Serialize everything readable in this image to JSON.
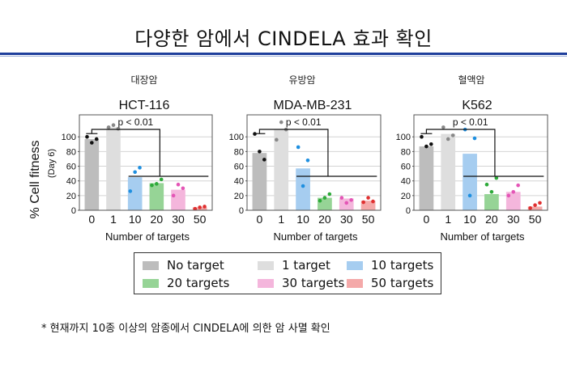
{
  "page": {
    "title": "다양한 암에서 CINDELA 효과 확인",
    "footnote": "* 현재까지 10종 이상의 암종에서 CINDELA에 의한 암 사멸 확인",
    "y_axis_label": "% Cell fitness",
    "y_axis_sublabel": "(Day 6)"
  },
  "legend": [
    {
      "label": "No target",
      "color": "#bdbdbd"
    },
    {
      "label": "1 target",
      "color": "#dedede"
    },
    {
      "label": "10 targets",
      "color": "#a6cdf0"
    },
    {
      "label": "20 targets",
      "color": "#96d496"
    },
    {
      "label": "30 targets",
      "color": "#f4b6dc"
    },
    {
      "label": "50 targets",
      "color": "#f4a9a9"
    }
  ],
  "chart_data": [
    {
      "type": "bar",
      "category_label": "대장암",
      "title": "HCT-116",
      "xlabel": "Number of targets",
      "ylabel": "% Cell fitness (Day 6)",
      "categories": [
        "0",
        "1",
        "10",
        "20",
        "30",
        "50"
      ],
      "values": [
        97,
        113,
        45,
        37,
        28,
        4
      ],
      "points": [
        [
          100,
          92,
          97
        ],
        [
          113,
          116,
          111
        ],
        [
          26,
          52,
          58
        ],
        [
          34,
          36,
          42
        ],
        [
          20,
          35,
          30
        ],
        [
          2,
          4,
          5
        ]
      ],
      "ylim": [
        0,
        130
      ],
      "yticks": [
        0,
        20,
        40,
        60,
        80,
        100
      ],
      "annotation": "p < 0.01"
    },
    {
      "type": "bar",
      "category_label": "유방암",
      "title": "MDA-MB-231",
      "xlabel": "Number of targets",
      "ylabel": "% Cell fitness (Day 6)",
      "categories": [
        "0",
        "1",
        "10",
        "20",
        "30",
        "50"
      ],
      "values": [
        78,
        110,
        57,
        17,
        16,
        13
      ],
      "points": [
        [
          104,
          80,
          69
        ],
        [
          96,
          120,
          110
        ],
        [
          86,
          33,
          68
        ],
        [
          13,
          17,
          22
        ],
        [
          17,
          10,
          14
        ],
        [
          11,
          17,
          12
        ]
      ],
      "ylim": [
        0,
        130
      ],
      "yticks": [
        0,
        20,
        40,
        60,
        80,
        100
      ],
      "annotation": "p < 0.01"
    },
    {
      "type": "bar",
      "category_label": "혈액암",
      "title": "K562",
      "xlabel": "Number of targets",
      "ylabel": "% Cell fitness (Day 6)",
      "categories": [
        "0",
        "1",
        "10",
        "20",
        "30",
        "50"
      ],
      "values": [
        87,
        104,
        77,
        22,
        25,
        5
      ],
      "points": [
        [
          100,
          87,
          90
        ],
        [
          113,
          97,
          102
        ],
        [
          110,
          20,
          98
        ],
        [
          35,
          25,
          44
        ],
        [
          20,
          25,
          34
        ],
        [
          3,
          7,
          10
        ]
      ],
      "ylim": [
        0,
        130
      ],
      "yticks": [
        0,
        20,
        40,
        60,
        80,
        100
      ],
      "annotation": "p < 0.01"
    }
  ]
}
